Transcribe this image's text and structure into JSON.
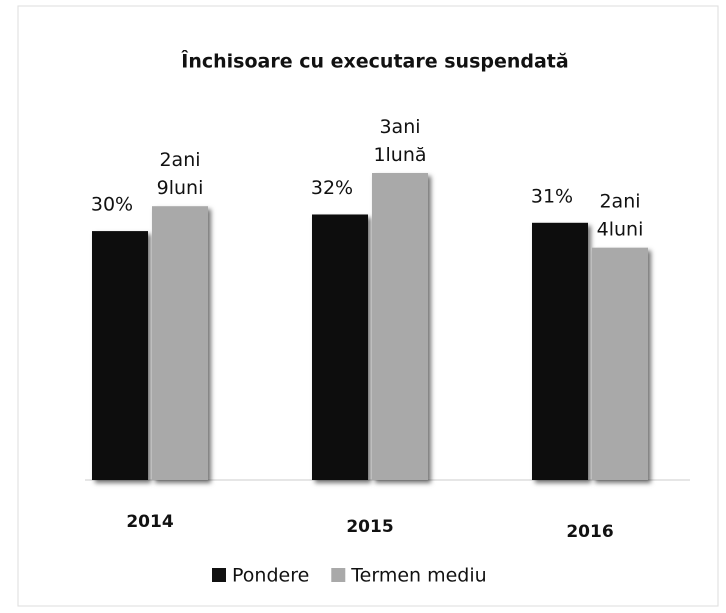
{
  "chart_data": {
    "type": "bar",
    "title": "Închisoare cu executare suspendată",
    "categories": [
      "2014",
      "2015",
      "2016"
    ],
    "series": [
      {
        "name": "Pondere",
        "color": "#111111",
        "values": [
          30,
          32,
          31
        ],
        "value_labels": [
          "30%",
          "32%",
          "31%"
        ]
      },
      {
        "name": "Termen mediu",
        "color": "#a9a9a9",
        "values": [
          33,
          37,
          28
        ],
        "value_labels": [
          [
            "2ani",
            "9luni"
          ],
          [
            "3ani",
            "1lună"
          ],
          [
            "2ani",
            "4luni"
          ]
        ]
      }
    ],
    "legend": "bottom"
  }
}
